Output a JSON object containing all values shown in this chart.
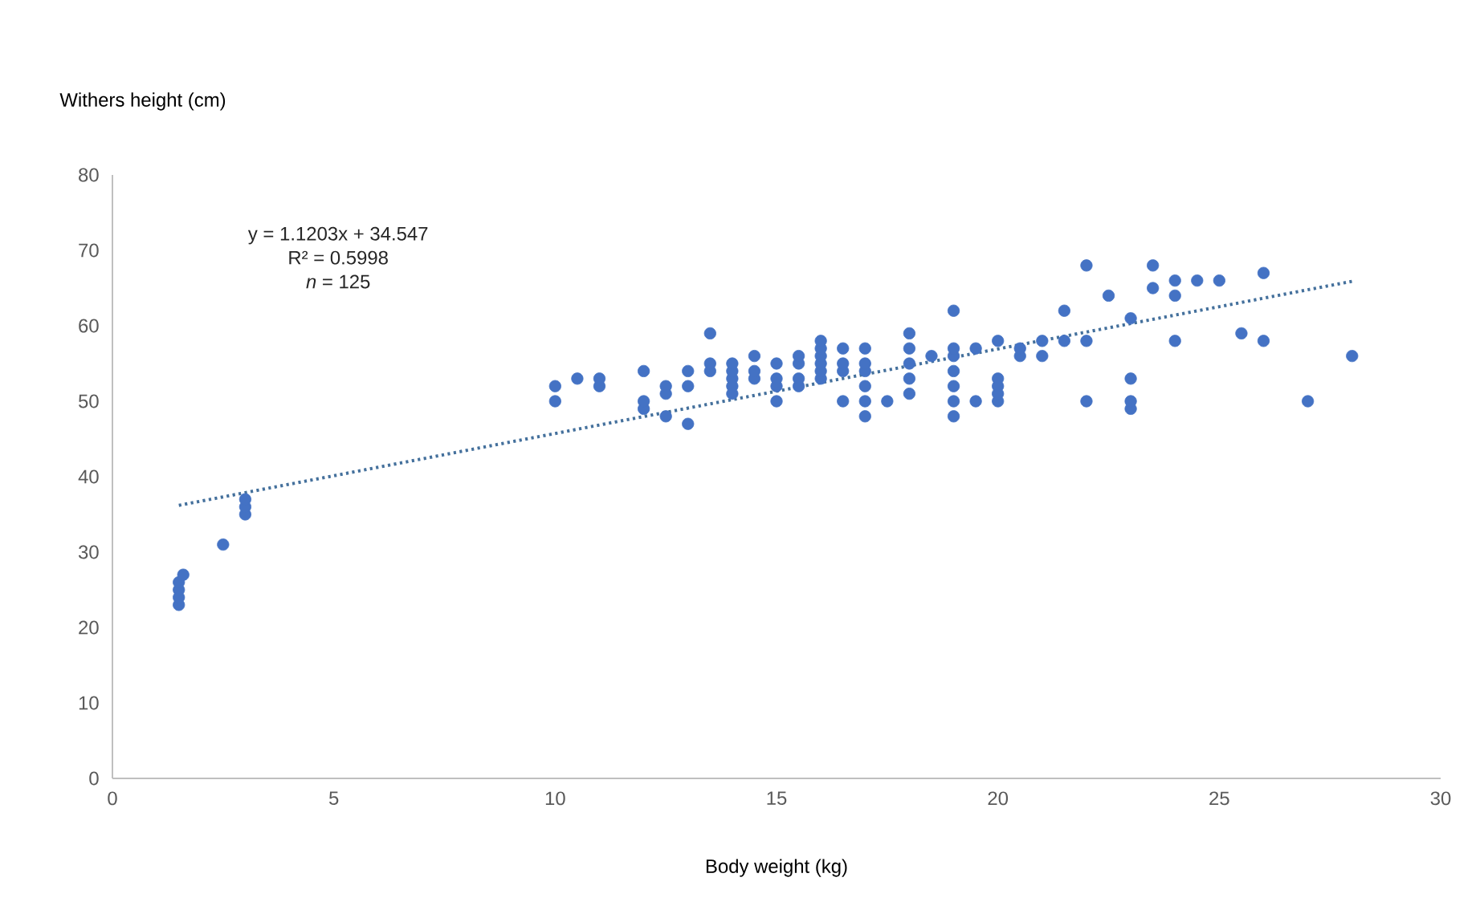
{
  "chart_data": {
    "type": "scatter",
    "xlabel": "Body weight (kg)",
    "ylabel": "Withers height (cm)",
    "xlim": [
      0,
      30
    ],
    "xticks": [
      0,
      5,
      10,
      15,
      20,
      25,
      30
    ],
    "ylim": [
      0,
      80
    ],
    "yticks": [
      0,
      10,
      20,
      30,
      40,
      50,
      60,
      70,
      80
    ],
    "annotations": [
      "y = 1.1203x + 34.547",
      "R² = 0.5998",
      "*n* = 125"
    ],
    "series": [
      {
        "color": "#4472c4",
        "marker": "circle",
        "x": [
          1.5,
          1.5,
          1.5,
          1.5,
          1.6,
          2.5,
          3,
          3,
          3,
          10,
          10,
          10.5,
          11,
          11,
          12,
          12,
          12,
          12.5,
          12.5,
          12.5,
          13,
          13,
          13,
          13.5,
          13.5,
          13.5,
          14,
          14,
          14,
          14,
          14,
          14.5,
          14.5,
          14.5,
          15,
          15,
          15,
          15,
          15.5,
          15.5,
          15.5,
          15.5,
          16,
          16,
          16,
          16,
          16,
          16,
          16.5,
          16.5,
          16.5,
          16.5,
          17,
          17,
          17,
          17,
          17,
          17,
          17.5,
          18,
          18,
          18,
          18,
          18,
          18.5,
          19,
          19,
          19,
          19,
          19,
          19,
          19,
          19.5,
          19.5,
          20,
          20,
          20,
          20,
          20,
          20.5,
          20.5,
          21,
          21,
          21.5,
          21.5,
          22,
          22,
          22,
          22.5,
          23,
          23,
          23,
          23,
          23.5,
          23.5,
          24,
          24,
          24,
          24.5,
          25,
          25.5,
          26,
          26,
          27,
          28
        ],
        "values": [
          23,
          24,
          25,
          26,
          27,
          31,
          35,
          36,
          37,
          50,
          52,
          53,
          52,
          53,
          49,
          50,
          54,
          48,
          51,
          52,
          47,
          52,
          54,
          54,
          55,
          59,
          51,
          52,
          53,
          54,
          55,
          53,
          54,
          56,
          50,
          52,
          53,
          55,
          52,
          53,
          55,
          56,
          53,
          54,
          55,
          56,
          57,
          58,
          50,
          54,
          55,
          57,
          48,
          50,
          52,
          54,
          55,
          57,
          50,
          51,
          53,
          55,
          57,
          59,
          56,
          48,
          50,
          52,
          54,
          56,
          57,
          62,
          50,
          57,
          50,
          51,
          52,
          53,
          58,
          56,
          57,
          56,
          58,
          58,
          62,
          50,
          58,
          68,
          64,
          49,
          50,
          53,
          61,
          65,
          68,
          58,
          64,
          66,
          66,
          66,
          59,
          58,
          67,
          50,
          56
        ]
      },
      {
        "type": "line",
        "color": "#44709c",
        "line_style": "dotted",
        "marker": "none",
        "x": [
          1.5,
          28
        ],
        "values": [
          36.2,
          65.9
        ]
      }
    ]
  }
}
